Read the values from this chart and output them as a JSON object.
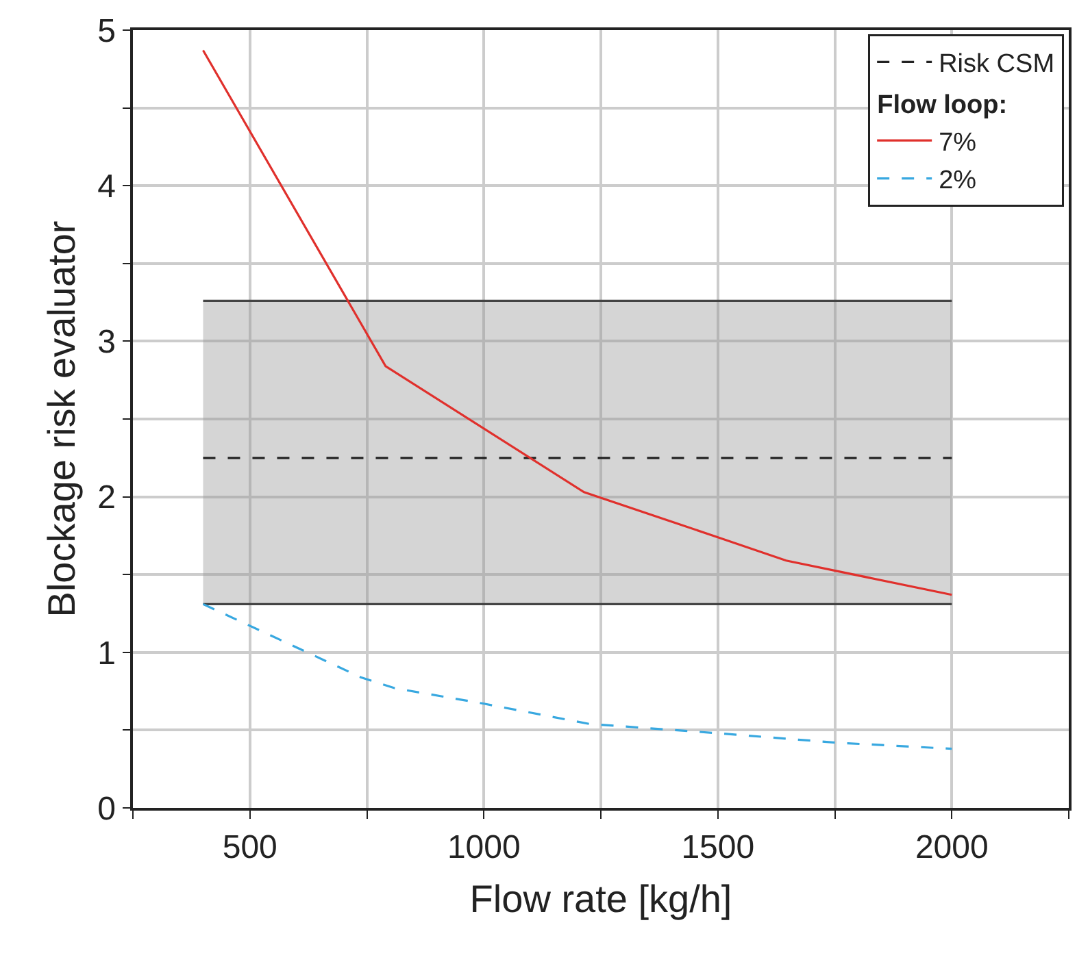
{
  "chart_data": {
    "type": "line",
    "xlabel": "Flow rate [kg/h]",
    "ylabel": "Blockage risk evaluator",
    "legend_title": "Flow loop:",
    "xlim": [
      250,
      2250
    ],
    "ylim": [
      0,
      5
    ],
    "xticks": [
      {
        "value": 250,
        "label": null
      },
      500,
      {
        "value": 750,
        "label": null
      },
      1000,
      {
        "value": 1250,
        "label": null
      },
      1500,
      {
        "value": 1750,
        "label": null
      },
      2000,
      {
        "value": 2250,
        "label": null
      }
    ],
    "yticks": [
      0,
      {
        "value": 0.5,
        "label": null
      },
      1,
      {
        "value": 1.5,
        "label": null
      },
      2,
      {
        "value": 2.5,
        "label": null
      },
      3,
      {
        "value": 3.5,
        "label": null
      },
      4,
      {
        "value": 4.5,
        "label": null
      },
      5
    ],
    "grid": true,
    "legend": "top right",
    "marker": "none",
    "series": [
      {
        "name": "Risk CSM",
        "color": "#222222",
        "line_style": "dashed",
        "x": [
          400,
          2000
        ],
        "values": [
          2.25,
          2.25
        ],
        "lower": [
          1.31,
          1.31
        ],
        "upper": [
          3.26,
          3.26
        ]
      },
      {
        "color": "#444444",
        "line_style": "solid",
        "x": [
          400,
          2000
        ],
        "values": [
          3.26,
          3.26
        ]
      },
      {
        "color": "#444444",
        "line_style": "solid",
        "x": [
          400,
          2000
        ],
        "values": [
          1.31,
          1.31
        ]
      },
      {
        "name": "7%",
        "color": "#e0302c",
        "line_style": "solid",
        "x": [
          400,
          790,
          1214,
          1500,
          1646,
          2000
        ],
        "values": [
          4.87,
          2.84,
          2.03,
          1.74,
          1.59,
          1.37
        ]
      },
      {
        "name": "2%",
        "color": "#38a8e0",
        "line_style": "dashed",
        "x": [
          400,
          737,
          809,
          1000,
          1225,
          1500,
          1750,
          2000
        ],
        "values": [
          1.31,
          0.84,
          0.77,
          0.67,
          0.54,
          0.48,
          0.42,
          0.38
        ]
      }
    ]
  }
}
